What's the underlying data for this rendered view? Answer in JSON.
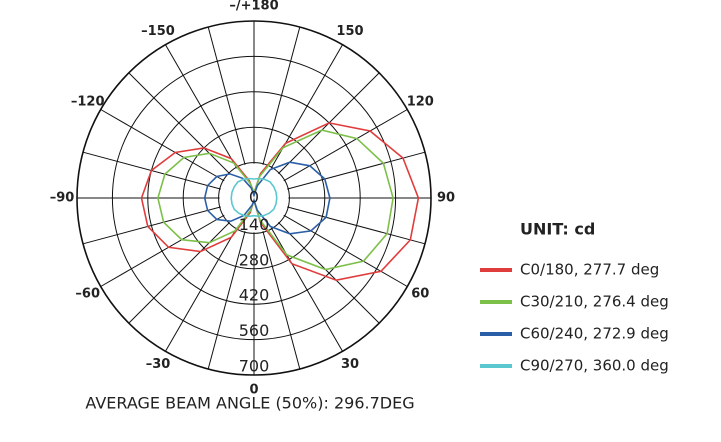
{
  "chart_data": {
    "type": "polar",
    "footer": "AVERAGE BEAM ANGLE (50%): 296.7DEG",
    "legend_title": "UNIT: cd",
    "legend": "right",
    "rlim": [
      0,
      700
    ],
    "rticks": [
      0,
      140,
      280,
      420,
      560,
      700
    ],
    "thetaticks": [
      0,
      30,
      60,
      90,
      120,
      150,
      {
        "value": 180,
        "label": "–/+180"
      },
      {
        "value": -150,
        "label": "–150"
      },
      {
        "value": -120,
        "label": "–120"
      },
      {
        "value": -90,
        "label": "–90"
      },
      {
        "value": -60,
        "label": "–60"
      },
      {
        "value": -30,
        "label": "–30"
      }
    ],
    "x": [
      -165,
      -150,
      -135,
      -120,
      -105,
      -90,
      -75,
      -60,
      -45,
      -30,
      -15,
      0,
      15,
      30,
      45,
      60,
      75,
      90,
      105,
      120,
      135,
      150,
      165,
      180
    ],
    "series": [
      {
        "name": "C0/180, 277.7 deg",
        "color": "#e03c3c",
        "values": [
          70,
          180,
          280,
          360,
          420,
          445,
          435,
          390,
          300,
          180,
          60,
          10,
          100,
          300,
          460,
          580,
          640,
          650,
          610,
          530,
          420,
          250,
          100,
          20
        ]
      },
      {
        "name": "C30/210, 276.4 deg",
        "color": "#7cc04a",
        "values": [
          60,
          160,
          250,
          320,
          365,
          380,
          370,
          330,
          250,
          150,
          50,
          10,
          90,
          260,
          400,
          500,
          545,
          550,
          530,
          470,
          380,
          230,
          90,
          20
        ]
      },
      {
        "name": "C60/240, 272.9 deg",
        "color": "#2a5fa8",
        "values": [
          40,
          90,
          135,
          170,
          190,
          195,
          190,
          170,
          130,
          80,
          30,
          10,
          50,
          130,
          200,
          260,
          295,
          300,
          290,
          255,
          200,
          130,
          50,
          10
        ]
      },
      {
        "name": "C90/270, 360.0 deg",
        "color": "#5bc8d0",
        "values": [
          80,
          85,
          90,
          90,
          90,
          90,
          90,
          90,
          85,
          80,
          75,
          70,
          75,
          80,
          85,
          90,
          90,
          90,
          90,
          90,
          90,
          85,
          80,
          75
        ]
      }
    ]
  }
}
